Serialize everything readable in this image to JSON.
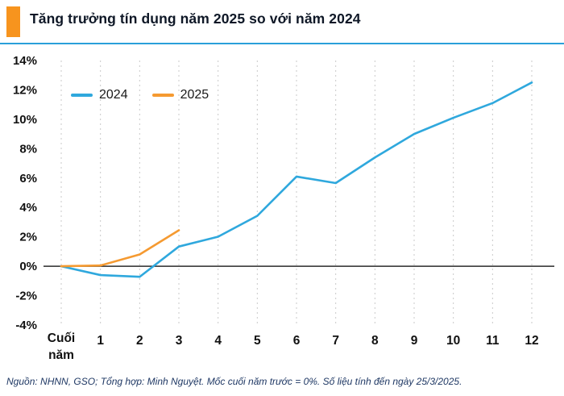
{
  "header": {
    "title": "Tăng trưởng tín dụng năm 2025 so với năm 2024",
    "accent_color": "#F7941E",
    "rule_color": "#2AA0DA"
  },
  "chart_data": {
    "type": "line",
    "title": "Tăng trưởng tín dụng năm 2025 so với năm 2024",
    "categories": [
      "Cuối năm",
      "1",
      "2",
      "3",
      "4",
      "5",
      "6",
      "7",
      "8",
      "9",
      "10",
      "11",
      "12"
    ],
    "series": [
      {
        "name": "2024",
        "color": "#2FA8DD",
        "values": [
          0,
          -0.6,
          -0.72,
          1.34,
          2.01,
          3.43,
          6.1,
          5.66,
          7.4,
          9.0,
          10.1,
          11.1,
          12.5
        ]
      },
      {
        "name": "2025",
        "color": "#F59A31",
        "values": [
          0,
          0.05,
          0.8,
          2.45
        ]
      }
    ],
    "ylim": [
      -4,
      14
    ],
    "y_tick_step": 2,
    "y_tick_suffix": "%",
    "grid": "vertical-dashed",
    "grid_color": "#C9C9C9",
    "zero_line_color": "#2A2A2A",
    "tick_label_color": "#111111",
    "legend_position": "top-left"
  },
  "footer": {
    "text": "Nguồn: NHNN, GSO; Tổng hợp: Minh Nguyệt. Mốc cuối năm trước = 0%.  Số liệu tính đến ngày 25/3/2025."
  }
}
